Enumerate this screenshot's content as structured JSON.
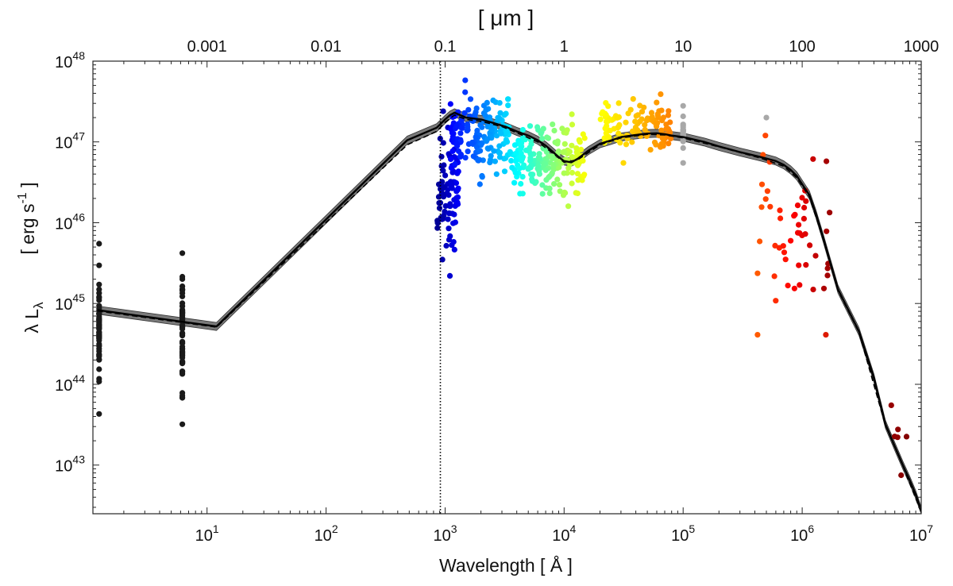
{
  "chart_data": {
    "type": "scatter",
    "title": "",
    "xlabel": "Wavelength  [  Å  ]",
    "top_xlabel": "[ μm ]",
    "ylabel_main": "λ L",
    "ylabel_sub": "λ",
    "ylabel_units": "[ erg s",
    "ylabel_units_exp": "-1",
    "ylabel_units_close": " ]",
    "x_scale": "log",
    "y_scale": "log",
    "xlim": [
      1.1,
      10000000
    ],
    "ylim": [
      2.5e+42,
      1e+48
    ],
    "grid": false,
    "x_ticks": [
      {
        "value": 10,
        "base": "10",
        "exp": "1"
      },
      {
        "value": 100,
        "base": "10",
        "exp": "2"
      },
      {
        "value": 1000,
        "base": "10",
        "exp": "3"
      },
      {
        "value": 10000,
        "base": "10",
        "exp": "4"
      },
      {
        "value": 100000,
        "base": "10",
        "exp": "5"
      },
      {
        "value": 1000000,
        "base": "10",
        "exp": "6"
      },
      {
        "value": 10000000,
        "base": "10",
        "exp": "7"
      }
    ],
    "top_ticks": [
      {
        "value": 10,
        "label": "0.001"
      },
      {
        "value": 100,
        "label": "0.01"
      },
      {
        "value": 1000,
        "label": "0.1"
      },
      {
        "value": 10000,
        "label": "1"
      },
      {
        "value": 100000,
        "label": "10"
      },
      {
        "value": 1000000,
        "label": "100"
      },
      {
        "value": 10000000,
        "label": "1000"
      }
    ],
    "y_ticks": [
      {
        "value": 1e+43,
        "base": "10",
        "exp": "43"
      },
      {
        "value": 1e+44,
        "base": "10",
        "exp": "44"
      },
      {
        "value": 1e+45,
        "base": "10",
        "exp": "45"
      },
      {
        "value": 1e+46,
        "base": "10",
        "exp": "46"
      },
      {
        "value": 1e+47,
        "base": "10",
        "exp": "47"
      },
      {
        "value": 1e+48,
        "base": "10",
        "exp": "48"
      }
    ],
    "lyman_limit_line": {
      "x": 912,
      "style": "dotted",
      "color": "#000000"
    },
    "colors": {
      "band": "#7a7a7a",
      "band_edge": "#333333",
      "median_line": "#000000",
      "mean_line": "#000000",
      "xray_points": "#1a1a1a",
      "gray_points": "#a8a8a8"
    },
    "series": [
      {
        "name": "median SED",
        "style": "solid",
        "x": [
          1.2,
          12,
          480,
          850,
          1000,
          1100,
          1200,
          1500,
          2000,
          2600,
          3200,
          4000,
          5000,
          6000,
          7000,
          8000,
          9000,
          10000,
          11500,
          13000,
          16000,
          20000,
          25000,
          30000,
          40000,
          50000,
          60000,
          70000,
          80000,
          100000,
          150000,
          200000,
          300000,
          450000,
          600000,
          700000,
          800000,
          900000,
          1000000,
          1150000,
          1300000,
          1500000,
          2000000,
          3000000,
          4000000,
          5000000,
          6000000,
          7000000,
          8000000,
          9000000,
          10000000
        ],
        "y": [
          8.3e+44,
          5.2e+44,
          1.05e+47,
          1.5e+47,
          1.9e+47,
          2.15e+47,
          2.3e+47,
          2e+47,
          1.9e+47,
          1.7e+47,
          1.55e+47,
          1.35e+47,
          1.2e+47,
          1.05e+47,
          9e+46,
          7.6e+46,
          6.5e+46,
          5.8e+46,
          5.6e+46,
          6.2e+46,
          7.8e+46,
          9.5e+46,
          1.05e+47,
          1.15e+47,
          1.22e+47,
          1.27e+47,
          1.28e+47,
          1.25e+47,
          1.2e+47,
          1.15e+47,
          1e+47,
          8.8e+46,
          7.5e+46,
          6.5e+46,
          5.8e+46,
          5.2e+46,
          4.5e+46,
          3.8e+46,
          3e+46,
          2.2e+46,
          1.3e+46,
          6.5e+45,
          1.5e+45,
          4.5e+44,
          1.2e+44,
          3.2e+43,
          1.7e+43,
          1e+43,
          6.5e+42,
          4.3e+42,
          2.7e+42
        ]
      },
      {
        "name": "mean SED",
        "style": "dashed",
        "x": [
          1.2,
          12,
          480,
          850,
          1000,
          1200,
          1500,
          2000,
          3000,
          4000,
          6000,
          8000,
          10000,
          13000,
          20000,
          30000,
          50000,
          70000,
          100000,
          200000,
          450000,
          700000,
          900000,
          1150000,
          1500000,
          2000000,
          3000000,
          5000000,
          7000000,
          10000000
        ],
        "y": [
          8.1e+44,
          5.1e+44,
          9.2e+46,
          1.35e+47,
          1.75e+47,
          2.15e+47,
          1.9e+47,
          1.8e+47,
          1.55e+47,
          1.3e+47,
          1e+47,
          7.3e+46,
          5.6e+46,
          6e+46,
          9.2e+46,
          1.12e+47,
          1.24e+47,
          1.22e+47,
          1.12e+47,
          8.7e+46,
          6.3e+46,
          5e+46,
          3.6e+46,
          2.1e+46,
          6.3e+45,
          1.45e+45,
          4.4e+44,
          3.1e+43,
          9.8e+42,
          2.6e+42
        ]
      }
    ],
    "band_width_dex": 0.05,
    "point_groups": [
      {
        "name": "hard X-ray",
        "x": 1.24,
        "ymin": 4.3e+43,
        "ymax": 5.5e+45,
        "n": 60,
        "color": "#1a1a1a"
      },
      {
        "name": "soft X-ray",
        "x": 6.2,
        "ymin": 3.2e+43,
        "ymax": 4.2e+45,
        "n": 60,
        "color": "#1a1a1a"
      },
      {
        "name": "far-UV",
        "xmin": 860,
        "xmax": 1300,
        "ymin": 2.2e+45,
        "ymax": 2.4e+47,
        "n": 90,
        "color_range": [
          0.02,
          0.12
        ]
      },
      {
        "name": "UV",
        "xmin": 1100,
        "xmax": 3500,
        "ymin": 3e+46,
        "ymax": 5.8e+47,
        "n": 170,
        "color_range": [
          0.12,
          0.35
        ]
      },
      {
        "name": "optical",
        "xmin": 3500,
        "xmax": 15000,
        "ymin": 1.6e+46,
        "ymax": 2.2e+47,
        "n": 190,
        "color_range": [
          0.35,
          0.62
        ]
      },
      {
        "name": "near-IR",
        "xmin": 20000,
        "xmax": 80000,
        "ymin": 5.5e+46,
        "ymax": 3.9e+47,
        "n": 110,
        "color_range": [
          0.62,
          0.75
        ]
      },
      {
        "name": "mid-IR (WISE)",
        "x": 100000,
        "ymin": 5.5e+46,
        "ymax": 2.8e+47,
        "n": 30,
        "color": "#a8a8a8"
      },
      {
        "name": "far-IR",
        "xmin": 400000,
        "xmax": 1700000,
        "ymin": 4.1e+44,
        "ymax": 1.2e+47,
        "n": 50,
        "color_range": [
          0.78,
          0.97
        ]
      },
      {
        "name": "sub-mm",
        "xmin": 5000000,
        "xmax": 8000000,
        "ymin": 7.5e+42,
        "ymax": 5.5e+43,
        "n": 6,
        "color_range": [
          0.97,
          1.0
        ]
      }
    ],
    "extra_points": [
      {
        "x": 500000,
        "y": 2e+47,
        "color": "#a8a8a8"
      },
      {
        "x": 1580000,
        "y": 4.1e+44,
        "color": "#dd1a00"
      }
    ]
  }
}
